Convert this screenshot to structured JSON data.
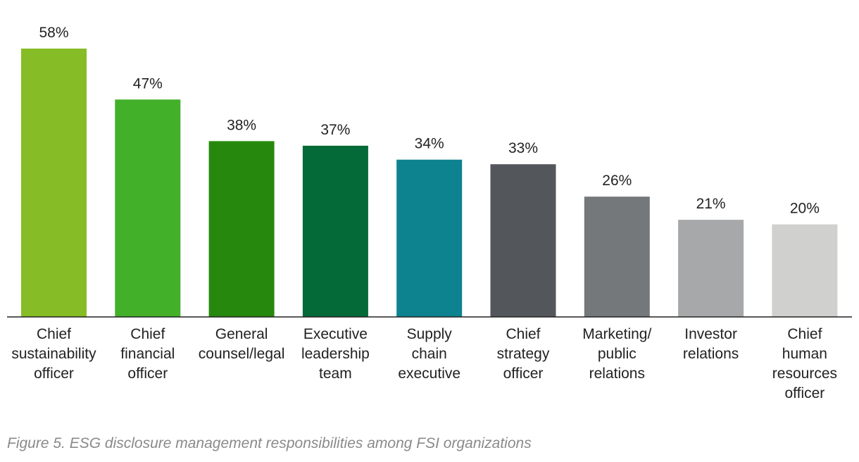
{
  "chart_data": {
    "type": "bar",
    "categories": [
      "Chief sustainability officer",
      "Chief financial officer",
      "General counsel/legal",
      "Executive leadership team",
      "Supply chain executive",
      "Chief strategy officer",
      "Marketing/ public relations",
      "Investor relations",
      "Chief human resources officer"
    ],
    "category_lines": [
      [
        "Chief",
        "sustainability",
        "officer"
      ],
      [
        "Chief",
        "financial",
        "officer"
      ],
      [
        "General",
        "counsel/legal"
      ],
      [
        "Executive",
        "leadership",
        "team"
      ],
      [
        "Supply",
        "chain",
        "executive"
      ],
      [
        "Chief",
        "strategy",
        "officer"
      ],
      [
        "Marketing/",
        "public",
        "relations"
      ],
      [
        "Investor",
        "relations"
      ],
      [
        "Chief",
        "human",
        "resources",
        "officer"
      ]
    ],
    "values": [
      58,
      47,
      38,
      37,
      34,
      33,
      26,
      21,
      20
    ],
    "value_labels": [
      "58%",
      "47%",
      "38%",
      "37%",
      "34%",
      "33%",
      "26%",
      "21%",
      "20%"
    ],
    "colors": [
      "#86bc25",
      "#43b02a",
      "#26890d",
      "#046a38",
      "#0d8390",
      "#53565a",
      "#75787b",
      "#a7a8aa",
      "#d0d0ce"
    ],
    "title": "",
    "xlabel": "",
    "ylabel": "",
    "ylim": [
      0,
      58
    ],
    "grid": false,
    "legend": "none"
  },
  "caption": "Figure 5. ESG disclosure management responsibilities among FSI organizations"
}
